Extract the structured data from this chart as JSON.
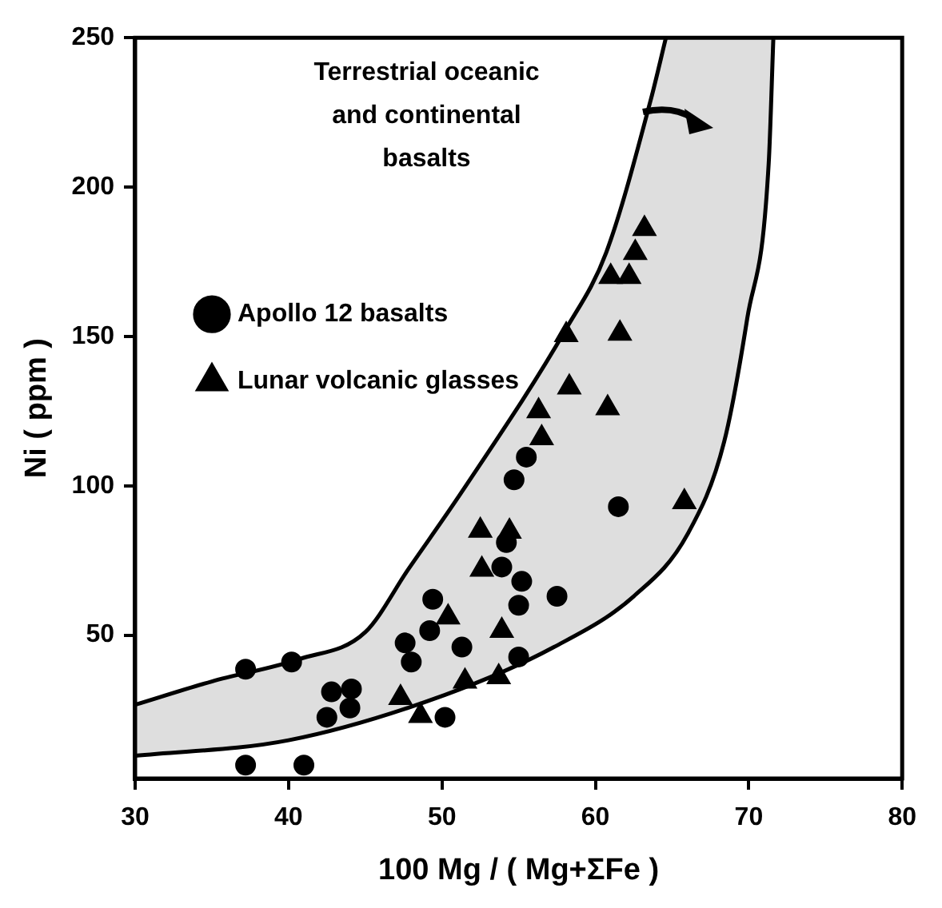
{
  "chart_data": {
    "type": "scatter",
    "xlabel": "100 Mg / ( Mg+ΣFe )",
    "ylabel": "Ni ( ppm )",
    "xlim": [
      30,
      80
    ],
    "xticks": [
      30,
      40,
      50,
      60,
      70,
      80
    ],
    "ylim": [
      2,
      250
    ],
    "yticks": [
      50,
      100,
      150,
      200,
      250
    ],
    "grid": false,
    "legend": "left",
    "annotations": [
      "Terrestrial oceanic\nand continental\nbasalts"
    ],
    "series": [
      {
        "name": "Apollo 12 basalts",
        "marker": "circle",
        "color": "#000000",
        "x": [
          37.2,
          40.2,
          37.2,
          41,
          42.8,
          44.1,
          42.5,
          44,
          49.4,
          47.6,
          48,
          49.2,
          50.2,
          51.3,
          55.5,
          54.7,
          61.5,
          54.2,
          53.9,
          55.2,
          55,
          57.5,
          55
        ],
        "values": [
          38.6,
          41,
          6.5,
          6.5,
          31,
          32,
          22.5,
          25.6,
          62,
          47.4,
          41,
          51.5,
          22.5,
          46,
          109.6,
          102,
          93,
          81,
          72.8,
          68,
          60,
          63,
          42.7
        ]
      },
      {
        "name": "Lunar volcanic glasses",
        "marker": "triangle",
        "color": "#000000",
        "x": [
          63.2,
          62.6,
          61,
          62.2,
          58.1,
          61.6,
          58.3,
          60.8,
          56.3,
          56.5,
          65.8,
          52.5,
          54.4,
          52.6,
          53.9,
          51.5,
          53.7,
          50.4,
          47.3,
          48.6
        ],
        "values": [
          186,
          178,
          170,
          170,
          150.5,
          151,
          133,
          126,
          125,
          116,
          94.6,
          85,
          84.7,
          72,
          51.5,
          34.5,
          36,
          56,
          29,
          23
        ]
      },
      {
        "type": "line",
        "marker": "none",
        "color": "#000000",
        "x": [
          30,
          40,
          50.2,
          57.3,
          62.5,
          66,
          68.4,
          69.9,
          71.3,
          71.6
        ],
        "values": [
          9.6,
          14.8,
          30,
          46,
          63,
          83.7,
          114.8,
          156,
          208,
          249.5
        ]
      },
      {
        "type": "area",
        "marker": "none",
        "color": "#000000",
        "x": [
          30,
          35,
          40.7,
          45,
          47.8,
          51.3,
          58.1,
          60.7,
          63.6,
          64.6
        ],
        "values": [
          26.7,
          34.5,
          42,
          51,
          72,
          98,
          152.6,
          178,
          229,
          250
        ]
      }
    ]
  }
}
